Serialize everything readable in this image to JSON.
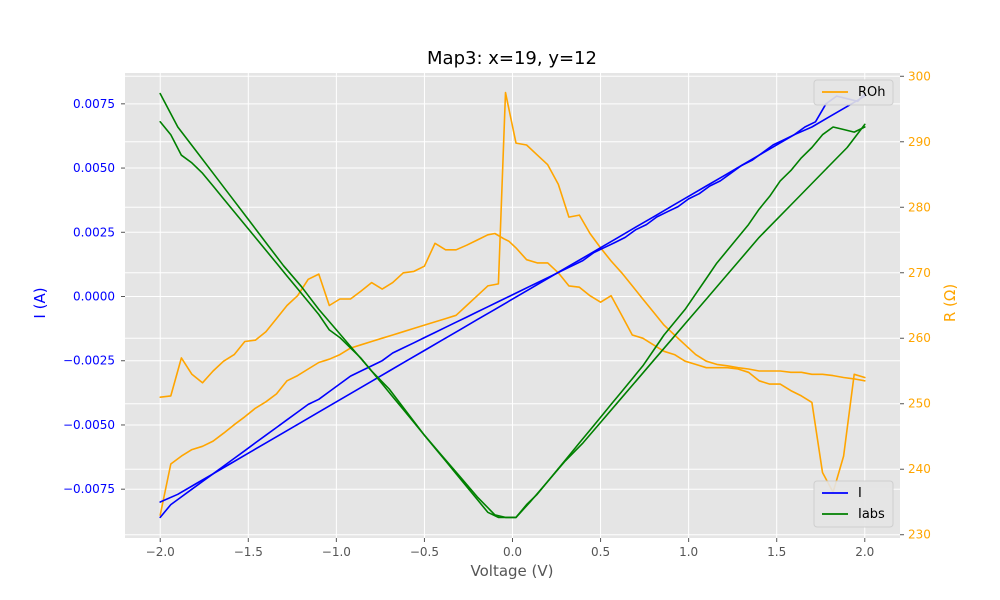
{
  "chart_data": {
    "type": "line",
    "title": "Map3: x=19, y=12",
    "xlabel": "Voltage (V)",
    "ylabel_left": "I (A)",
    "ylabel_right": "R (Ω)",
    "xlim": [
      -2.2,
      2.2
    ],
    "ylim_left": [
      -0.0094,
      0.0087
    ],
    "ylim_right": [
      229.5,
      300.5
    ],
    "x_ticks": [
      "−2.0",
      "−1.5",
      "−1.0",
      "−0.5",
      "0.0",
      "0.5",
      "1.0",
      "1.5",
      "2.0"
    ],
    "x_tick_values": [
      -2.0,
      -1.5,
      -1.0,
      -0.5,
      0.0,
      0.5,
      1.0,
      1.5,
      2.0
    ],
    "y_left_ticks": [
      "−0.0075",
      "−0.0050",
      "−0.0025",
      "0.0000",
      "0.0025",
      "0.0050",
      "0.0075"
    ],
    "y_left_tick_values": [
      -0.0075,
      -0.005,
      -0.0025,
      0.0,
      0.0025,
      0.005,
      0.0075
    ],
    "y_right_ticks": [
      "230",
      "240",
      "250",
      "260",
      "270",
      "280",
      "290",
      "300"
    ],
    "y_right_tick_values": [
      230,
      240,
      250,
      260,
      270,
      280,
      290,
      300
    ],
    "grid": true,
    "legend_left_placement": "lower-right",
    "legend_right_placement": "upper-right",
    "colors": {
      "plot_background": "#e5e5e5",
      "grid": "#ffffff",
      "left_axis": "#0000ff",
      "right_axis": "#ffa500",
      "tick_text": "#555555"
    },
    "series": [
      {
        "name": "I",
        "axis": "left",
        "color": "#0000ff",
        "segments": [
          {
            "x": [
              -2.0,
              -1.94,
              -1.88,
              -1.82,
              -1.76,
              -1.7,
              -1.64,
              -1.58,
              -1.52,
              -1.46,
              -1.4,
              -1.34,
              -1.28,
              -1.22,
              -1.16,
              -1.1,
              -1.04,
              -0.98,
              -0.92,
              -0.86,
              -0.8,
              -0.74,
              -0.68,
              -0.62,
              -0.56,
              -0.5,
              -0.44,
              -0.38,
              -0.32,
              -0.26,
              -0.2,
              -0.14,
              -0.08,
              -0.02,
              0.04,
              0.1,
              0.16,
              0.22,
              0.28,
              0.34,
              0.4,
              0.46,
              0.52,
              0.58,
              0.64,
              0.7,
              0.76,
              0.82,
              0.88,
              0.94,
              1.0,
              1.06,
              1.12,
              1.18,
              1.24,
              1.3,
              1.36,
              1.42,
              1.48,
              1.54,
              1.6,
              1.66,
              1.72,
              1.78,
              1.84,
              1.9,
              1.96,
              2.0
            ],
            "y": [
              -0.0086,
              -0.0081,
              -0.0078,
              -0.0075,
              -0.0072,
              -0.0069,
              -0.0066,
              -0.0063,
              -0.006,
              -0.0057,
              -0.0054,
              -0.0051,
              -0.0048,
              -0.0045,
              -0.0042,
              -0.004,
              -0.0037,
              -0.0034,
              -0.0031,
              -0.0029,
              -0.0027,
              -0.0025,
              -0.0022,
              -0.002,
              -0.0018,
              -0.0016,
              -0.0014,
              -0.0012,
              -0.001,
              -0.0008,
              -0.0006,
              -0.0004,
              -0.0002,
              0.0,
              0.0002,
              0.0004,
              0.0006,
              0.0008,
              0.001,
              0.0012,
              0.0014,
              0.0017,
              0.0019,
              0.0021,
              0.0023,
              0.0026,
              0.0028,
              0.0031,
              0.0033,
              0.0035,
              0.0038,
              0.004,
              0.0043,
              0.0045,
              0.0048,
              0.0051,
              0.0053,
              0.0056,
              0.0059,
              0.0061,
              0.0063,
              0.0066,
              0.0068,
              0.0075,
              0.0078,
              0.0077,
              0.0076,
              0.0079
            ]
          },
          {
            "x": [
              -2.0,
              -1.9,
              -1.8,
              -1.7,
              -1.6,
              -1.5,
              -1.4,
              -1.3,
              -1.2,
              -1.1,
              -1.0,
              -0.9,
              -0.8,
              -0.7,
              -0.6,
              -0.5,
              -0.4,
              -0.3,
              -0.2,
              -0.1,
              0.0,
              0.1,
              0.2,
              0.3,
              0.4,
              0.5,
              0.6,
              0.7,
              0.8,
              0.9,
              1.0,
              1.1,
              1.2,
              1.3,
              1.4,
              1.5,
              1.6,
              1.7,
              1.8,
              1.9,
              2.0
            ],
            "y": [
              -0.008,
              -0.0077,
              -0.0073,
              -0.0069,
              -0.0065,
              -0.0061,
              -0.0057,
              -0.0053,
              -0.0049,
              -0.0045,
              -0.0041,
              -0.0037,
              -0.0033,
              -0.0029,
              -0.0025,
              -0.0021,
              -0.0017,
              -0.0013,
              -0.0009,
              -0.0005,
              -0.0001,
              0.0003,
              0.0007,
              0.0011,
              0.0015,
              0.0019,
              0.0023,
              0.0027,
              0.0031,
              0.0035,
              0.0039,
              0.0043,
              0.0047,
              0.0051,
              0.0055,
              0.0059,
              0.0063,
              0.0066,
              0.007,
              0.0074,
              0.0078
            ]
          }
        ]
      },
      {
        "name": "Iabs",
        "axis": "left",
        "color": "#008000",
        "segments": [
          {
            "x": [
              -2.0,
              -1.94,
              -1.88,
              -1.82,
              -1.76,
              -1.7,
              -1.64,
              -1.58,
              -1.52,
              -1.46,
              -1.4,
              -1.34,
              -1.28,
              -1.22,
              -1.16,
              -1.1,
              -1.04,
              -0.98,
              -0.92,
              -0.86,
              -0.8,
              -0.74,
              -0.68,
              -0.62,
              -0.56,
              -0.5,
              -0.44,
              -0.38,
              -0.32,
              -0.26,
              -0.2,
              -0.14,
              -0.08,
              -0.02,
              0.02,
              0.08,
              0.14,
              0.2,
              0.26,
              0.32,
              0.38,
              0.44,
              0.5,
              0.56,
              0.62,
              0.68,
              0.74,
              0.8,
              0.86,
              0.92,
              0.98,
              1.04,
              1.1,
              1.16,
              1.22,
              1.28,
              1.34,
              1.4,
              1.46,
              1.52,
              1.58,
              1.64,
              1.7,
              1.76,
              1.82,
              1.88,
              1.94,
              2.0
            ],
            "y": [
              0.0068,
              0.0063,
              0.0055,
              0.0052,
              0.0048,
              0.0043,
              0.0038,
              0.0033,
              0.0028,
              0.0023,
              0.0018,
              0.0013,
              0.0008,
              0.0003,
              -0.0002,
              -0.0007,
              -0.0013,
              -0.0016,
              -0.002,
              -0.0024,
              -0.0029,
              -0.0034,
              -0.0039,
              -0.0044,
              -0.0049,
              -0.0054,
              -0.0059,
              -0.0064,
              -0.0069,
              -0.0074,
              -0.0079,
              -0.0084,
              -0.0086,
              -0.0086,
              -0.0086,
              -0.0081,
              -0.0077,
              -0.0072,
              -0.0067,
              -0.0062,
              -0.0057,
              -0.0052,
              -0.0047,
              -0.0042,
              -0.0037,
              -0.0032,
              -0.0027,
              -0.0021,
              -0.0015,
              -0.001,
              -0.0005,
              0.0001,
              0.0007,
              0.0013,
              0.0018,
              0.0023,
              0.0028,
              0.0034,
              0.0039,
              0.0045,
              0.0049,
              0.0054,
              0.0058,
              0.0063,
              0.0066,
              0.0065,
              0.0064,
              0.0066
            ]
          },
          {
            "x": [
              -2.0,
              -1.9,
              -1.8,
              -1.7,
              -1.6,
              -1.5,
              -1.4,
              -1.3,
              -1.2,
              -1.1,
              -1.0,
              -0.9,
              -0.8,
              -0.7,
              -0.6,
              -0.5,
              -0.4,
              -0.3,
              -0.2,
              -0.1,
              -0.04,
              0.02,
              0.1,
              0.2,
              0.3,
              0.4,
              0.5,
              0.6,
              0.7,
              0.8,
              0.9,
              1.0,
              1.1,
              1.2,
              1.3,
              1.4,
              1.5,
              1.6,
              1.7,
              1.8,
              1.9,
              2.0
            ],
            "y": [
              0.0079,
              0.0066,
              0.0057,
              0.0048,
              0.0039,
              0.003,
              0.0021,
              0.0012,
              0.0004,
              -0.0005,
              -0.0013,
              -0.0021,
              -0.0029,
              -0.0036,
              -0.0045,
              -0.0054,
              -0.0062,
              -0.007,
              -0.0078,
              -0.0085,
              -0.0086,
              -0.0086,
              -0.008,
              -0.0072,
              -0.0064,
              -0.0057,
              -0.0049,
              -0.0041,
              -0.0033,
              -0.0025,
              -0.0017,
              -0.0009,
              -0.0001,
              0.0007,
              0.0015,
              0.0023,
              0.003,
              0.0037,
              0.0044,
              0.0051,
              0.0058,
              0.0067
            ]
          }
        ]
      },
      {
        "name": "ROh",
        "axis": "right",
        "color": "#ffa500",
        "segments": [
          {
            "x": [
              -2.0,
              -1.94,
              -1.88,
              -1.82,
              -1.76,
              -1.7,
              -1.64,
              -1.58,
              -1.52,
              -1.46,
              -1.4,
              -1.34,
              -1.28,
              -1.22,
              -1.16,
              -1.1,
              -1.04,
              -0.98,
              -0.92,
              -0.86,
              -0.8,
              -0.74,
              -0.68,
              -0.62,
              -0.56,
              -0.5,
              -0.44,
              -0.38,
              -0.32,
              -0.26,
              -0.2,
              -0.14,
              -0.1,
              -0.05,
              -0.02,
              0.02,
              0.08,
              0.14,
              0.2,
              0.26,
              0.32,
              0.38,
              0.44,
              0.5,
              0.56,
              0.62,
              0.68,
              0.74,
              0.8,
              0.86,
              0.92,
              0.98,
              1.04,
              1.1,
              1.16,
              1.22,
              1.28,
              1.34,
              1.4,
              1.46,
              1.52,
              1.58,
              1.64,
              1.7,
              1.76,
              1.82,
              1.88,
              1.94,
              2.0
            ],
            "y": [
              251.0,
              251.2,
              257.0,
              254.5,
              253.2,
              255.0,
              256.5,
              257.5,
              259.5,
              259.7,
              261.0,
              263.0,
              265.0,
              266.5,
              269.0,
              269.8,
              265.0,
              266.0,
              266.0,
              267.2,
              268.5,
              267.5,
              268.5,
              270.0,
              270.2,
              271.0,
              274.5,
              273.5,
              273.5,
              274.2,
              275.0,
              275.8,
              276.0,
              275.2,
              274.8,
              273.8,
              272.0,
              271.5,
              271.5,
              270.0,
              268.0,
              267.8,
              266.5,
              265.5,
              266.5,
              263.5,
              260.5,
              260.0,
              259.0,
              258.0,
              257.5,
              256.5,
              256.0,
              255.5,
              255.5,
              255.5,
              255.3,
              254.8,
              253.5,
              253.0,
              253.0,
              252.0,
              251.2,
              250.2,
              239.5,
              236.5,
              242.0,
              254.5,
              254.0
            ]
          },
          {
            "x": [
              -2.0,
              -1.94,
              -1.88,
              -1.82,
              -1.76,
              -1.7,
              -1.64,
              -1.58,
              -1.52,
              -1.46,
              -1.4,
              -1.34,
              -1.28,
              -1.22,
              -1.16,
              -1.1,
              -1.04,
              -0.98,
              -0.92,
              -0.86,
              -0.8,
              -0.74,
              -0.68,
              -0.62,
              -0.56,
              -0.5,
              -0.44,
              -0.38,
              -0.32,
              -0.26,
              -0.2,
              -0.14,
              -0.08,
              -0.04,
              0.02,
              0.08,
              0.14,
              0.2,
              0.26,
              0.32,
              0.38,
              0.44,
              0.5,
              0.56,
              0.62,
              0.68,
              0.74,
              0.8,
              0.86,
              0.92,
              0.98,
              1.04,
              1.1,
              1.16,
              1.22,
              1.28,
              1.34,
              1.4,
              1.46,
              1.52,
              1.58,
              1.64,
              1.7,
              1.76,
              1.82,
              1.88,
              1.94,
              2.0
            ],
            "y": [
              233.0,
              240.8,
              242.0,
              243.0,
              243.5,
              244.3,
              245.5,
              246.8,
              248.0,
              249.3,
              250.3,
              251.5,
              253.5,
              254.3,
              255.3,
              256.3,
              256.8,
              257.5,
              258.5,
              259.0,
              259.5,
              260.0,
              260.5,
              261.0,
              261.5,
              262.0,
              262.5,
              263.0,
              263.5,
              265.0,
              266.5,
              268.0,
              268.3,
              297.5,
              289.8,
              289.5,
              288.0,
              286.5,
              283.5,
              278.5,
              278.8,
              276.0,
              273.8,
              271.8,
              270.0,
              268.0,
              266.0,
              264.0,
              262.0,
              260.5,
              259.0,
              257.5,
              256.5,
              256.0,
              255.8,
              255.5,
              255.3,
              255.0,
              255.0,
              255.0,
              254.8,
              254.8,
              254.5,
              254.5,
              254.3,
              254.0,
              253.8,
              253.5
            ]
          }
        ]
      }
    ]
  }
}
